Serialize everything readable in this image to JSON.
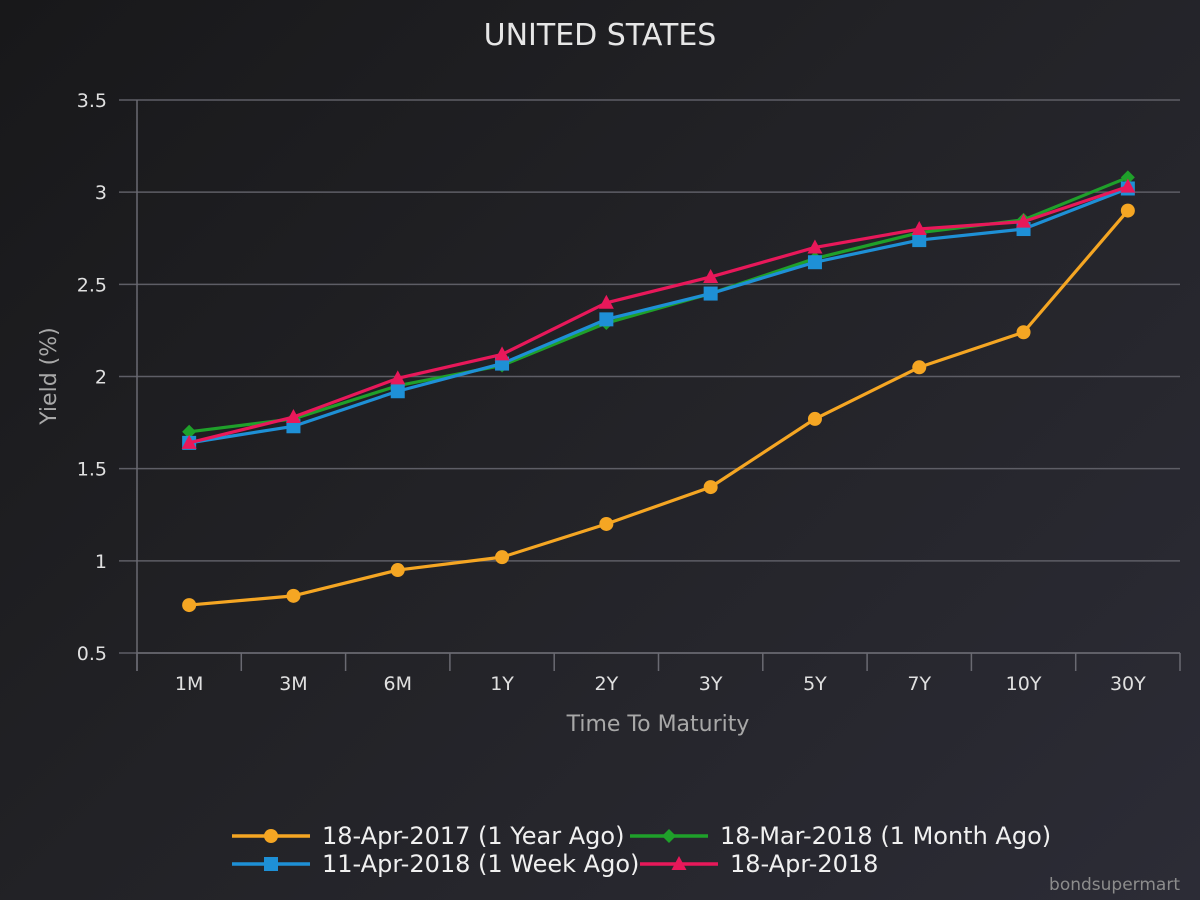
{
  "chart_data": {
    "type": "line",
    "title": "UNITED STATES",
    "xlabel": "Time To Maturity",
    "ylabel": "Yield (%)",
    "categories": [
      "1M",
      "3M",
      "6M",
      "1Y",
      "2Y",
      "3Y",
      "5Y",
      "7Y",
      "10Y",
      "30Y"
    ],
    "ylim": [
      0.5,
      3.5
    ],
    "yticks": [
      0.5,
      1,
      1.5,
      2,
      2.5,
      3,
      3.5
    ],
    "ytick_labels": [
      "0.5",
      "1",
      "1.5",
      "2",
      "2.5",
      "3",
      "3.5"
    ],
    "grid": true,
    "legend_position": "bottom",
    "series": [
      {
        "name": "18-Apr-2017 (1 Year Ago)",
        "color": "#f5a623",
        "marker": "circle",
        "values": [
          0.76,
          0.81,
          0.95,
          1.02,
          1.2,
          1.4,
          1.77,
          2.05,
          2.24,
          2.9
        ]
      },
      {
        "name": "18-Mar-2018 (1 Month Ago)",
        "color": "#1fa02a",
        "marker": "diamond",
        "values": [
          1.7,
          1.77,
          1.95,
          2.06,
          2.29,
          2.45,
          2.64,
          2.78,
          2.85,
          3.08
        ]
      },
      {
        "name": "11-Apr-2018 (1 Week Ago)",
        "color": "#1e90d6",
        "marker": "square",
        "values": [
          1.64,
          1.73,
          1.92,
          2.07,
          2.31,
          2.45,
          2.62,
          2.74,
          2.8,
          3.02
        ]
      },
      {
        "name": "18-Apr-2018",
        "color": "#e8185a",
        "marker": "triangle",
        "values": [
          1.64,
          1.78,
          1.99,
          2.12,
          2.4,
          2.54,
          2.7,
          2.8,
          2.84,
          3.03
        ]
      }
    ]
  },
  "credit": "bondsupermart"
}
